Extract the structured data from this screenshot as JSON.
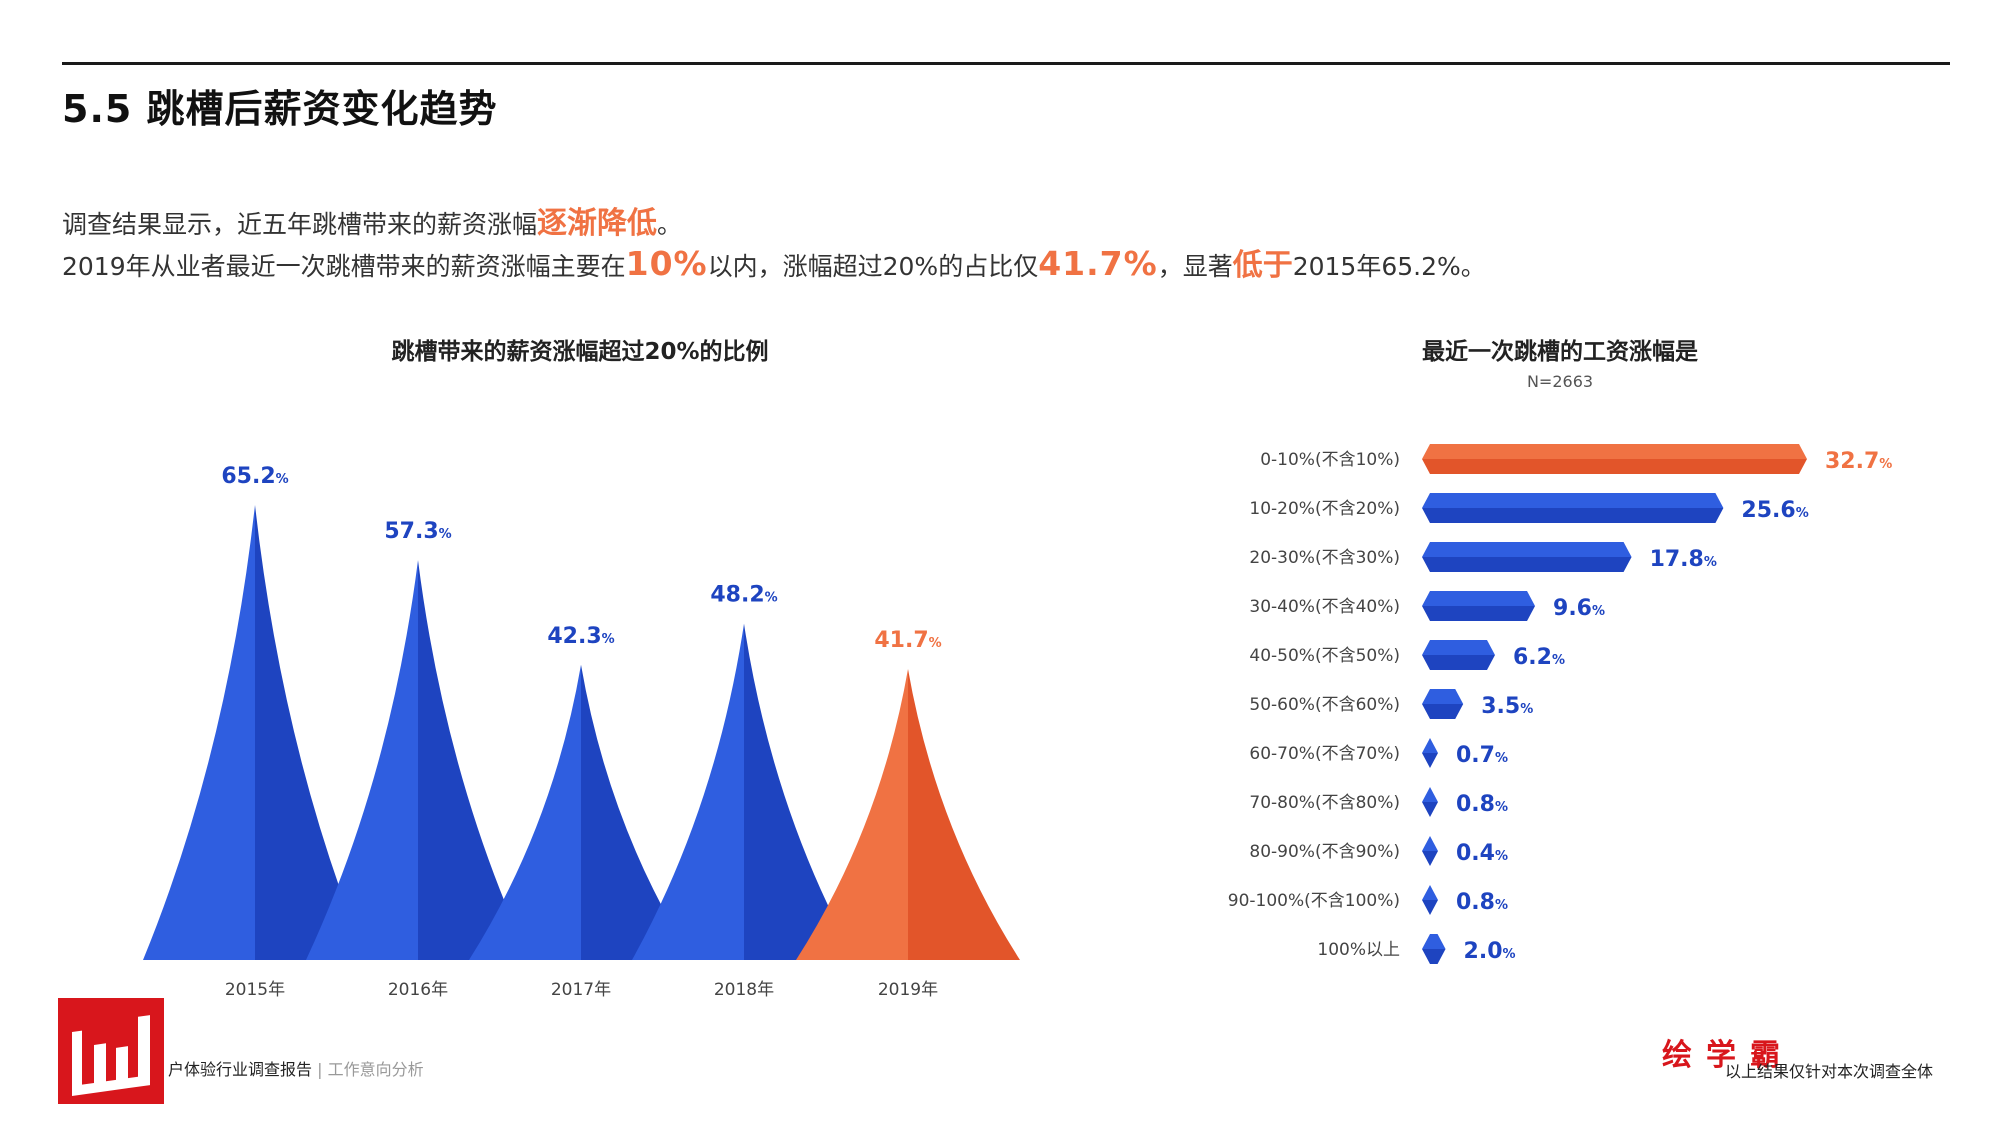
{
  "page": {
    "title": "5.5 跳槽后薪资变化趋势",
    "summary_line1": {
      "prefix": "调查结果显示，近五年跳槽带来的薪资涨幅",
      "highlight": "逐渐降低",
      "suffix": "。"
    },
    "summary_line2": {
      "t1": "2019年从业者最近一次跳槽带来的薪资涨幅主要在",
      "h1": "10%",
      "t2": "以内，涨幅超过20%的占比仅",
      "h2": "41.7%",
      "t3": "，显著",
      "h3": "低于",
      "t4": "2015年65.2%。"
    }
  },
  "colors": {
    "blue": "#2f5ee0",
    "blue_dark": "#1e44c0",
    "orange": "#f07243",
    "orange_dark": "#e2552a"
  },
  "chart_data": [
    {
      "type": "bar",
      "title": "跳槽带来的薪资涨幅超过20%的比例",
      "categories": [
        "2015年",
        "2016年",
        "2017年",
        "2018年",
        "2019年"
      ],
      "values": [
        65.2,
        57.3,
        42.3,
        48.2,
        41.7
      ],
      "value_suffix": "%",
      "highlight_index": 4,
      "ylim": [
        0,
        70
      ]
    },
    {
      "type": "bar",
      "orientation": "horizontal",
      "title": "最近一次跳槽的工资涨幅是",
      "subtitle": "N=2663",
      "categories": [
        "0-10%(不含10%)",
        "10-20%(不含20%)",
        "20-30%(不含30%)",
        "30-40%(不含40%)",
        "40-50%(不含50%)",
        "50-60%(不含60%)",
        "60-70%(不含70%)",
        "70-80%(不含80%)",
        "80-90%(不含90%)",
        "90-100%(不含100%)",
        "100%以上"
      ],
      "values": [
        32.7,
        25.6,
        17.8,
        9.6,
        6.2,
        3.5,
        0.7,
        0.8,
        0.4,
        0.8,
        2.0
      ],
      "value_suffix": "%",
      "highlight_index": 0
    }
  ],
  "footer": {
    "logo_letter": "W",
    "left_main": "户体验行业调查报告",
    "left_sep": " | ",
    "left_sub": "工作意向分析",
    "brand": "绘学霸",
    "right": "以上结果仅针对本次调查全体"
  }
}
